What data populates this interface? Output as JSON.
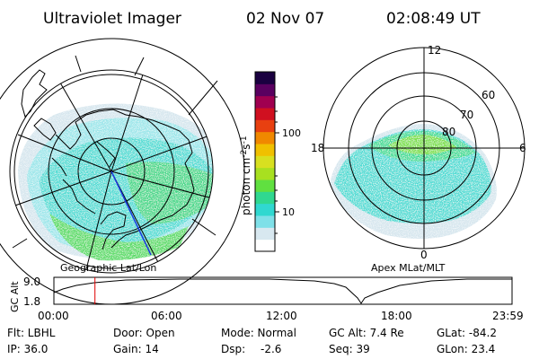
{
  "header": {
    "instrument": "Ultraviolet Imager",
    "date": "02 Nov 07",
    "time": "02:08:49 UT"
  },
  "colorbar": {
    "label": "photon cm⁻²s⁻¹",
    "label_base": "photon cm",
    "label_sup1": "-2",
    "label_mid": "s",
    "label_sup2": "-1",
    "tick_100": "100",
    "tick_10": "10",
    "colors": [
      "#ffffff",
      "#d8e8f0",
      "#7fe0e8",
      "#30d8d0",
      "#30d890",
      "#60e040",
      "#a8e020",
      "#d8e020",
      "#f0c000",
      "#f08800",
      "#e84010",
      "#d01020",
      "#a00050",
      "#5a0060",
      "#1a0040"
    ]
  },
  "left_plot": {
    "caption": "Geographic Lat/Lon"
  },
  "right_plot": {
    "caption": "Apex MLat/MLT",
    "mlt_labels": {
      "top": "12",
      "left": "18",
      "right": "6",
      "bottom": "0"
    },
    "lat_labels": [
      "60",
      "70",
      "80"
    ]
  },
  "altitude_panel": {
    "axis_label": "GC Alt",
    "y_ticks": [
      "9.0",
      "1.8"
    ],
    "x_ticks": [
      "00:00",
      "06:00",
      "12:00",
      "18:00",
      "23:59"
    ],
    "marker_hour": 2.147,
    "marker_color": "#e00000"
  },
  "status": {
    "filter": "Flt: LBHL",
    "door": "Door: Open",
    "mode": "Mode: Normal",
    "gc_alt": "GC Alt: 7.4 Re",
    "glat": "GLat: -84.2",
    "ip": "IP: 36.0",
    "gain": "Gain: 14",
    "dsp_label": "Dsp:",
    "dsp_value": "-2.6",
    "seq": "Seq: 39",
    "glon": "GLon: 23.4"
  }
}
